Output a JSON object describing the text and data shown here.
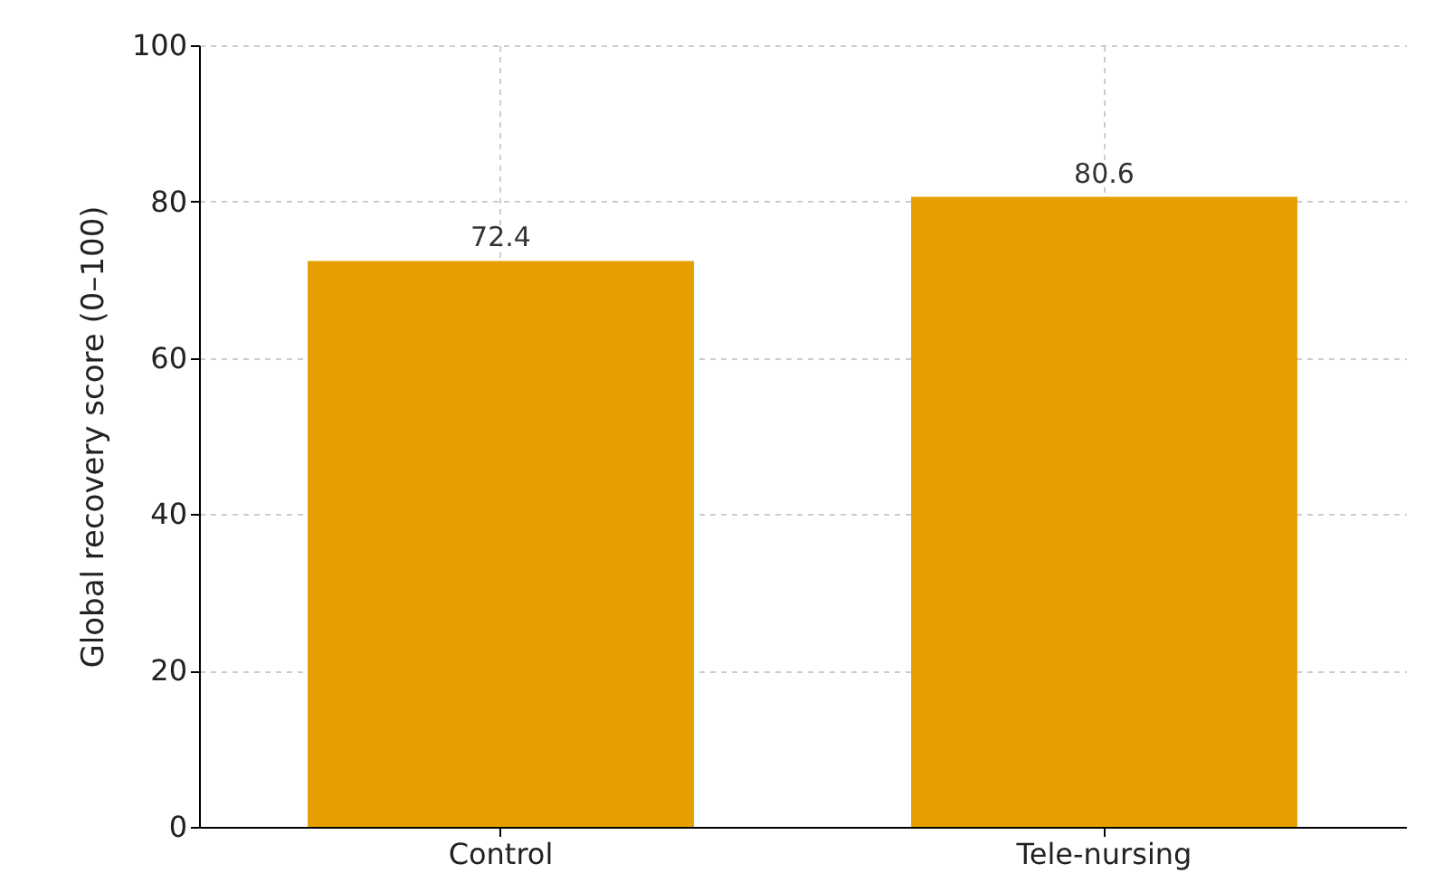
{
  "chart_data": {
    "type": "bar",
    "ylabel": "Global recovery score (0–100)",
    "categories": [
      "Control",
      "Tele-nursing"
    ],
    "values": [
      72.4,
      80.6
    ],
    "color": "#e69f00",
    "ylim": [
      0,
      100
    ],
    "yticks": [
      0,
      20,
      40,
      60,
      80,
      100
    ],
    "grid": true,
    "data_labels": true
  }
}
